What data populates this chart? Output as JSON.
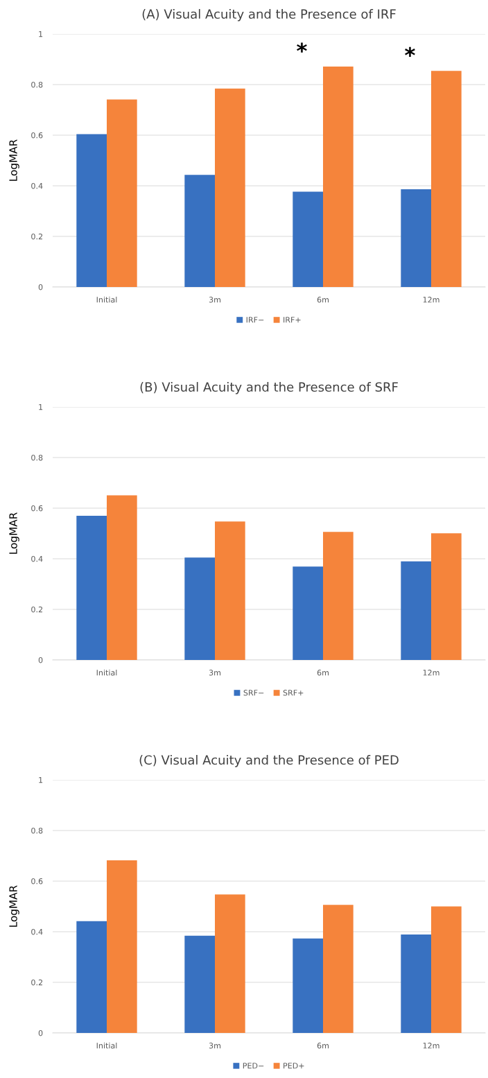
{
  "chart_data": [
    {
      "type": "bar",
      "title": "(A) Visual Acuity and the Presence of IRF",
      "ylabel": "LogMAR",
      "categories": [
        "Initial",
        "3m",
        "6m",
        "12m"
      ],
      "series": [
        {
          "name": "IRF−",
          "color": "#3871c1",
          "values": [
            0.604,
            0.443,
            0.377,
            0.386
          ]
        },
        {
          "name": "IRF+",
          "color": "#f5843b",
          "values": [
            0.741,
            0.784,
            0.871,
            0.854
          ]
        }
      ],
      "ylim": [
        0,
        1
      ],
      "yticks": [
        0,
        0.2,
        0.4,
        0.6,
        0.8,
        1
      ],
      "grid": "y",
      "legend": "bottom",
      "annotations": [
        {
          "text": "*",
          "x": "6m",
          "y": 0.871
        },
        {
          "text": "*",
          "x": "12m",
          "y": 0.854
        }
      ]
    },
    {
      "type": "bar",
      "title": "(B) Visual Acuity and the Presence of SRF",
      "ylabel": "LogMAR",
      "categories": [
        "Initial",
        "3m",
        "6m",
        "12m"
      ],
      "series": [
        {
          "name": "SRF−",
          "color": "#3871c1",
          "values": [
            0.57,
            0.405,
            0.369,
            0.39
          ]
        },
        {
          "name": "SRF+",
          "color": "#f5843b",
          "values": [
            0.651,
            0.547,
            0.506,
            0.501
          ]
        }
      ],
      "ylim": [
        0,
        1
      ],
      "yticks": [
        0,
        0.2,
        0.4,
        0.6,
        0.8,
        1
      ],
      "grid": "y",
      "legend": "bottom"
    },
    {
      "type": "bar",
      "title": "(C) Visual Acuity and the Presence of PED",
      "ylabel": "LogMAR",
      "categories": [
        "Initial",
        "3m",
        "6m",
        "12m"
      ],
      "series": [
        {
          "name": "PED−",
          "color": "#3871c1",
          "values": [
            0.442,
            0.384,
            0.373,
            0.389
          ]
        },
        {
          "name": "PED+",
          "color": "#f5843b",
          "values": [
            0.682,
            0.547,
            0.506,
            0.5
          ]
        }
      ],
      "ylim": [
        0,
        1
      ],
      "yticks": [
        0,
        0.2,
        0.4,
        0.6,
        0.8,
        1
      ],
      "grid": "y",
      "legend": "bottom"
    }
  ]
}
